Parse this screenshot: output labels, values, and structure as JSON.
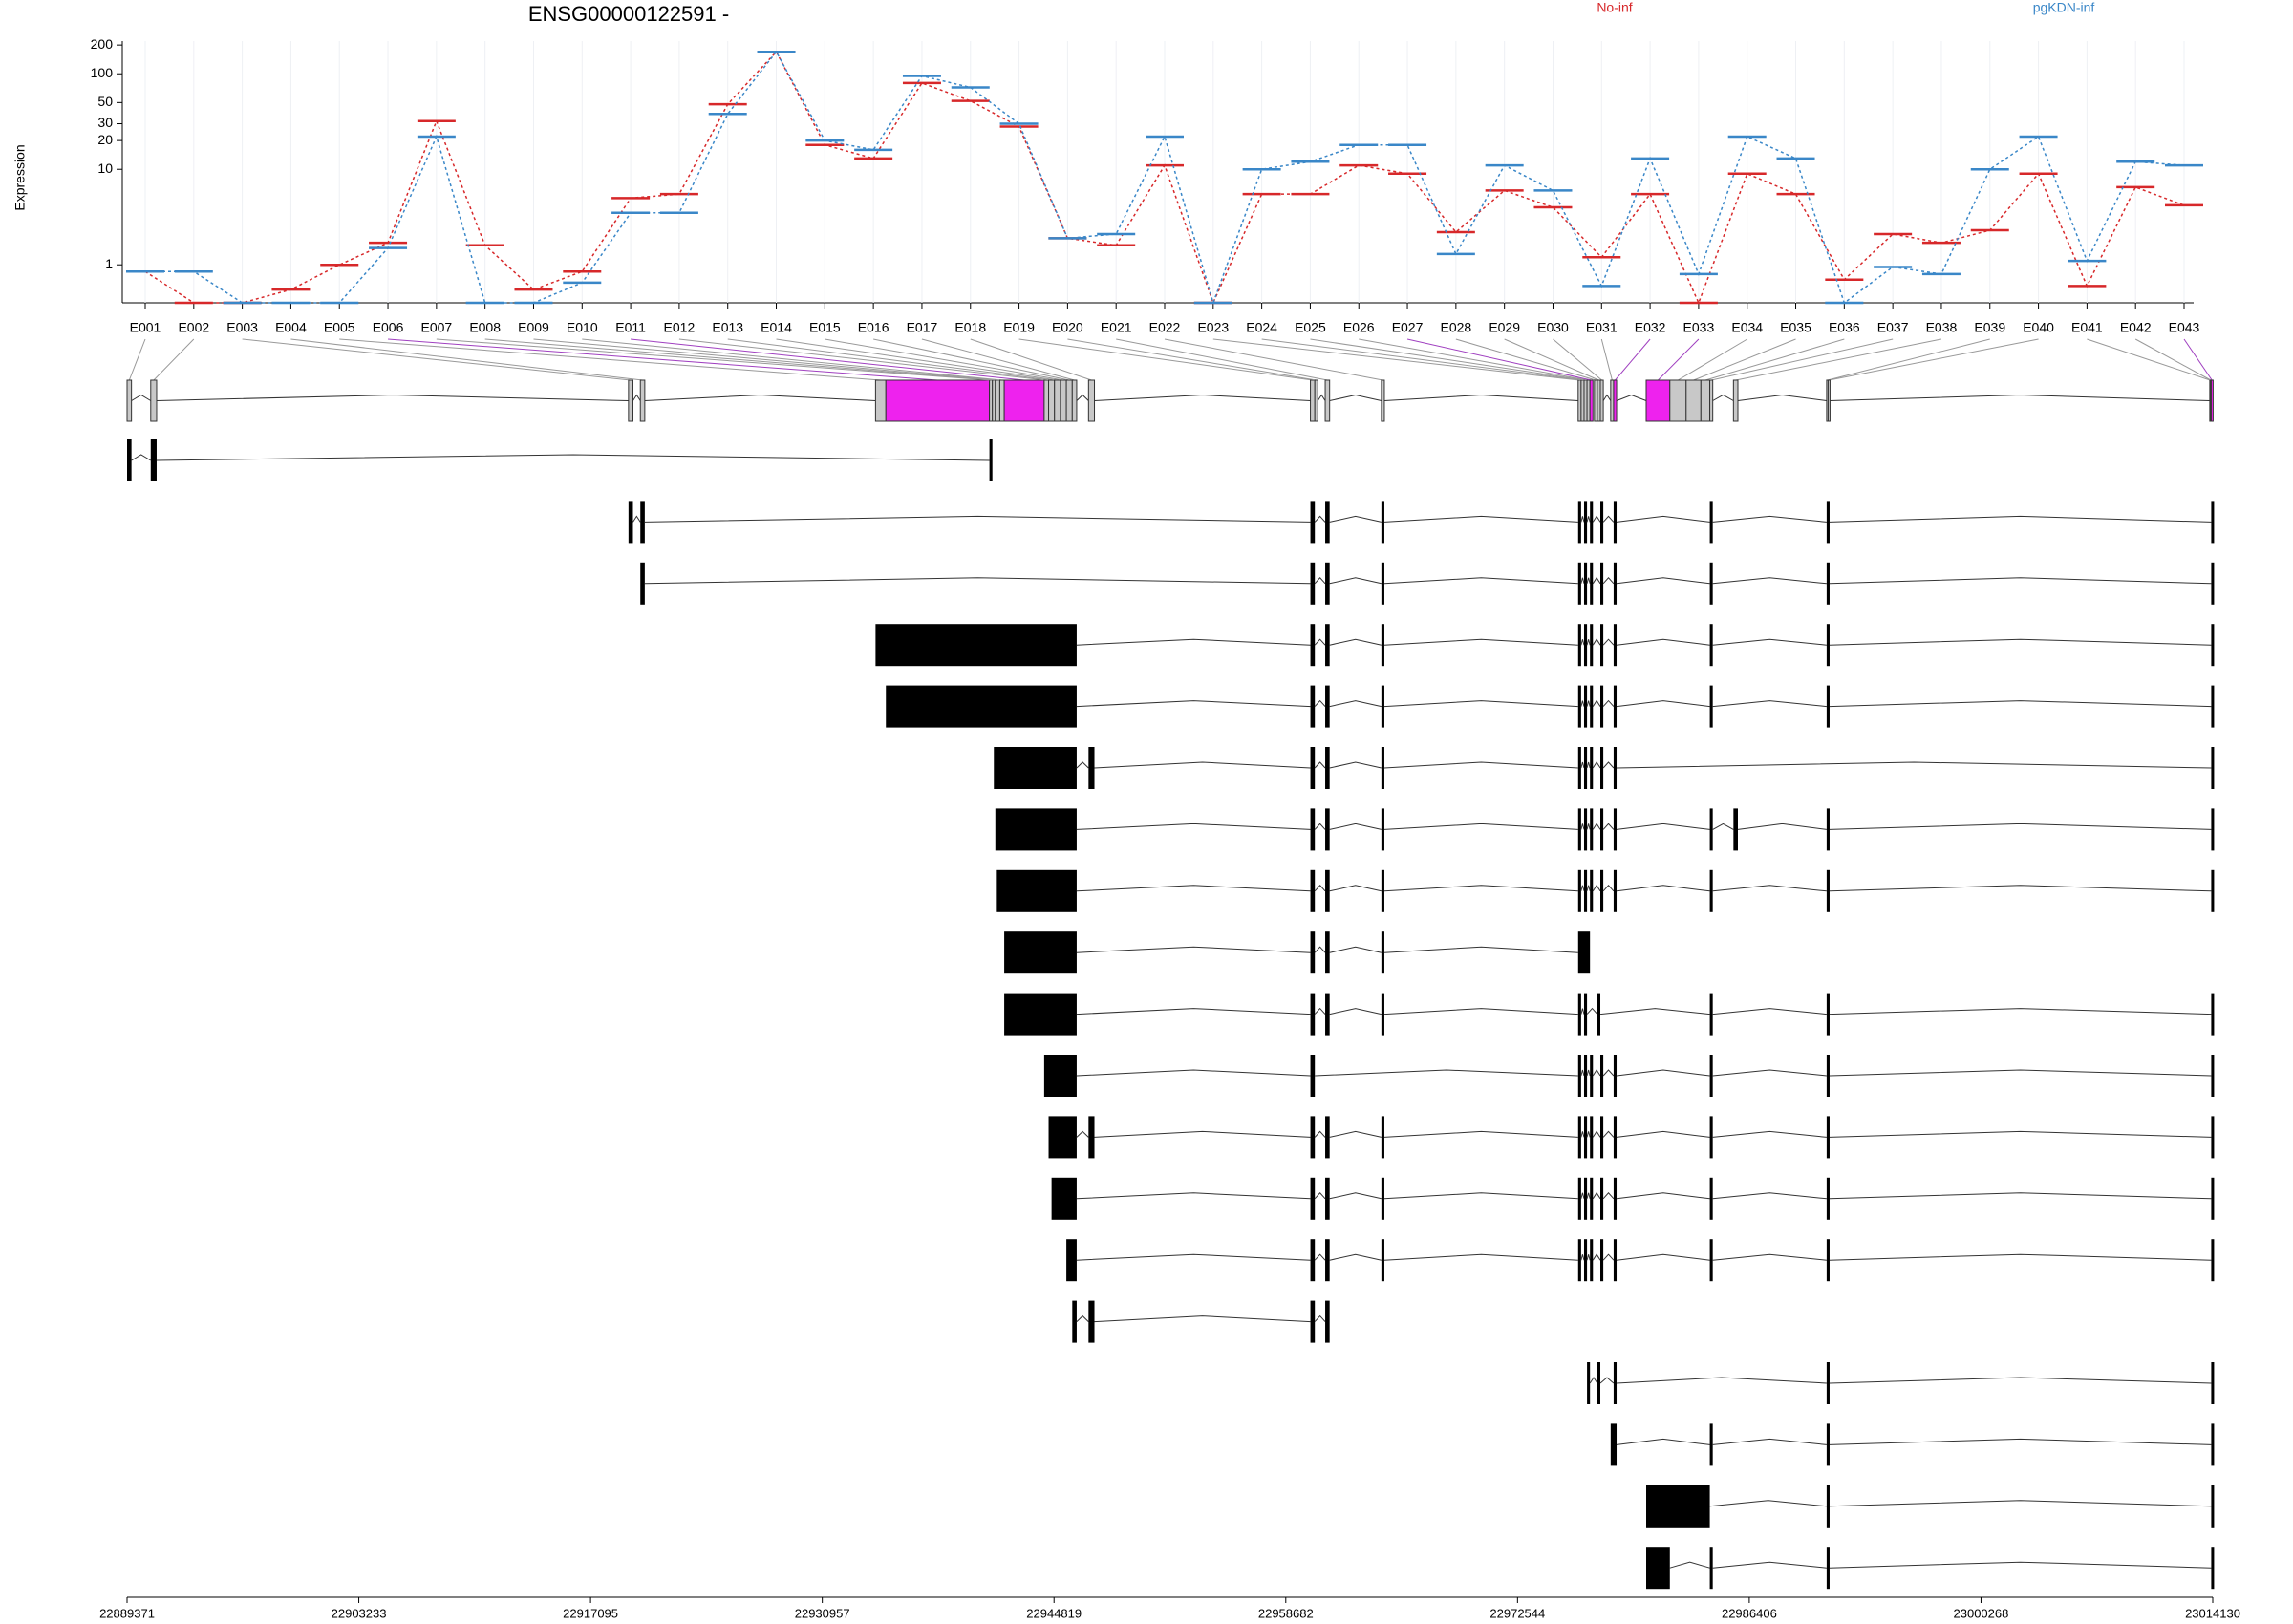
{
  "chart_data": {
    "type": "exon_usage",
    "title": "ENSG00000122591 -",
    "ylabel": "Expression",
    "log_y": true,
    "grid": true,
    "ylim": [
      0.4,
      220
    ],
    "yticks": [
      1,
      10,
      20,
      30,
      50,
      100,
      200
    ],
    "categories": [
      "E001",
      "E002",
      "E003",
      "E004",
      "E005",
      "E006",
      "E007",
      "E008",
      "E009",
      "E010",
      "E011",
      "E012",
      "E013",
      "E014",
      "E015",
      "E016",
      "E017",
      "E018",
      "E019",
      "E020",
      "E021",
      "E022",
      "E023",
      "E024",
      "E025",
      "E026",
      "E027",
      "E028",
      "E029",
      "E030",
      "E031",
      "E032",
      "E033",
      "E034",
      "E035",
      "E036",
      "E037",
      "E038",
      "E039",
      "E040",
      "E041",
      "E042",
      "E043"
    ],
    "series": [
      {
        "name": "No-inf",
        "color": "#d7282a",
        "values": [
          0.85,
          0.4,
          0.4,
          0.55,
          1.0,
          1.7,
          32,
          1.6,
          0.55,
          0.85,
          5,
          5.5,
          48,
          170,
          18,
          13,
          80,
          52,
          28,
          1.9,
          1.6,
          11,
          0.4,
          5.5,
          5.5,
          11,
          9,
          2.2,
          6,
          4,
          1.2,
          5.5,
          0.4,
          9,
          5.5,
          0.7,
          2.1,
          1.7,
          2.3,
          9,
          0.6,
          6.5,
          4.2
        ]
      },
      {
        "name": "pgKDN-inf",
        "color": "#3a87c8",
        "values": [
          0.85,
          0.85,
          0.4,
          0.4,
          0.4,
          1.5,
          22,
          0.4,
          0.4,
          0.65,
          3.5,
          3.5,
          38,
          170,
          20,
          16,
          95,
          72,
          30,
          1.9,
          2.1,
          22,
          0.4,
          10,
          12,
          18,
          18,
          1.3,
          11,
          6,
          0.6,
          13,
          0.8,
          22,
          13,
          0.4,
          0.95,
          0.8,
          10,
          22,
          1.1,
          12,
          11
        ]
      }
    ],
    "xlim": [
      22889371,
      23014130
    ],
    "xticks": [
      22889371,
      22903233,
      22917095,
      22930957,
      22944819,
      22958682,
      22972544,
      22986406,
      23000268,
      23014130
    ],
    "exon_bins": [
      [
        22889371,
        22889636
      ],
      [
        22890787,
        22891141
      ],
      [
        22919366,
        22919631
      ],
      [
        22920074,
        22920339
      ],
      [
        22934142,
        22934761
      ],
      [
        22934761,
        22940955
      ],
      [
        22940955,
        22941132
      ],
      [
        22941132,
        22941309
      ],
      [
        22941309,
        22941574
      ],
      [
        22941574,
        22941840
      ],
      [
        22941840,
        22944229
      ],
      [
        22944229,
        22944494
      ],
      [
        22944494,
        22944848
      ],
      [
        22944848,
        22945202
      ],
      [
        22945202,
        22945556
      ],
      [
        22945556,
        22945910
      ],
      [
        22945910,
        22946175
      ],
      [
        22946883,
        22947237
      ],
      [
        22960155,
        22960420
      ],
      [
        22960420,
        22960597
      ],
      [
        22961040,
        22961305
      ],
      [
        22964402,
        22964579
      ],
      [
        22976170,
        22976347
      ],
      [
        22976347,
        22976524
      ],
      [
        22976524,
        22976701
      ],
      [
        22976701,
        22976878
      ],
      [
        22976878,
        22977055
      ],
      [
        22977143,
        22977320
      ],
      [
        22977320,
        22977497
      ],
      [
        22977497,
        22977674
      ],
      [
        22978116,
        22978293
      ],
      [
        22978293,
        22978470
      ],
      [
        22980240,
        22981656
      ],
      [
        22981656,
        22982629
      ],
      [
        22982629,
        22983514
      ],
      [
        22983514,
        22984045
      ],
      [
        22984045,
        22984222
      ],
      [
        22985460,
        22985726
      ],
      [
        22991035,
        22991123
      ],
      [
        22991123,
        22991211
      ],
      [
        23013951,
        23013995
      ],
      [
        23013995,
        23014039
      ],
      [
        23014039,
        23014130
      ]
    ],
    "exon_colors": [
      "#c8c8c8",
      "#c8c8c8",
      "#c8c8c8",
      "#c8c8c8",
      "#c8c8c8",
      "#ee22ee",
      "#c8c8c8",
      "#c8c8c8",
      "#c8c8c8",
      "#c8c8c8",
      "#ee22ee",
      "#c8c8c8",
      "#c8c8c8",
      "#c8c8c8",
      "#c8c8c8",
      "#c8c8c8",
      "#c8c8c8",
      "#c8c8c8",
      "#c8c8c8",
      "#c8c8c8",
      "#c8c8c8",
      "#c8c8c8",
      "#c8c8c8",
      "#c8c8c8",
      "#c8c8c8",
      "#c8c8c8",
      "#ee22ee",
      "#c8c8c8",
      "#c8c8c8",
      "#c8c8c8",
      "#c8c8c8",
      "#ee22ee",
      "#ee22ee",
      "#c8c8c8",
      "#c8c8c8",
      "#c8c8c8",
      "#c8c8c8",
      "#c8c8c8",
      "#c8c8c8",
      "#c8c8c8",
      "#c8c8c8",
      "#c8c8c8",
      "#ee22ee"
    ],
    "transcripts": [
      [
        [
          22889371,
          22889636
        ],
        [
          22890787,
          22891141
        ],
        [
          22940955,
          22941132
        ]
      ],
      [
        [
          22919366,
          22919631
        ],
        [
          22920074,
          22920339
        ],
        [
          22960155,
          22960420
        ],
        [
          22961040,
          22961305
        ],
        [
          22964402,
          22964579
        ],
        [
          22976170,
          22976347
        ],
        [
          22976524,
          22976701
        ],
        [
          22976878,
          22977055
        ],
        [
          22977497,
          22977674
        ],
        [
          22978293,
          22978470
        ],
        [
          22984045,
          22984222
        ],
        [
          22991035,
          22991211
        ],
        [
          23014039,
          23014130
        ]
      ],
      [
        [
          22920074,
          22920339
        ],
        [
          22960155,
          22960420
        ],
        [
          22961040,
          22961305
        ],
        [
          22964402,
          22964579
        ],
        [
          22976170,
          22976347
        ],
        [
          22976524,
          22976701
        ],
        [
          22976878,
          22977055
        ],
        [
          22977497,
          22977674
        ],
        [
          22978293,
          22978470
        ],
        [
          22984045,
          22984222
        ],
        [
          22991035,
          22991211
        ],
        [
          23014039,
          23014130
        ]
      ],
      [
        [
          22934142,
          22946175
        ],
        [
          22960155,
          22960420
        ],
        [
          22961040,
          22961305
        ],
        [
          22964402,
          22964579
        ],
        [
          22976170,
          22976347
        ],
        [
          22976524,
          22976701
        ],
        [
          22976878,
          22977055
        ],
        [
          22977497,
          22977674
        ],
        [
          22978293,
          22978470
        ],
        [
          22984045,
          22984222
        ],
        [
          22991035,
          22991211
        ],
        [
          23014039,
          23014130
        ]
      ],
      [
        [
          22934761,
          22946175
        ],
        [
          22960155,
          22960420
        ],
        [
          22961040,
          22961305
        ],
        [
          22964402,
          22964579
        ],
        [
          22976170,
          22976347
        ],
        [
          22976524,
          22976701
        ],
        [
          22976878,
          22977055
        ],
        [
          22977497,
          22977674
        ],
        [
          22978293,
          22978470
        ],
        [
          22984045,
          22984222
        ],
        [
          22991035,
          22991211
        ],
        [
          23014039,
          23014130
        ]
      ],
      [
        [
          22941220,
          22946175
        ],
        [
          22946883,
          22947237
        ],
        [
          22960155,
          22960420
        ],
        [
          22961040,
          22961305
        ],
        [
          22964402,
          22964579
        ],
        [
          22976170,
          22976347
        ],
        [
          22976524,
          22976701
        ],
        [
          22976878,
          22977055
        ],
        [
          22977497,
          22977674
        ],
        [
          22978293,
          22978470
        ],
        [
          23014039,
          23014130
        ]
      ],
      [
        [
          22941309,
          22946175
        ],
        [
          22960155,
          22960420
        ],
        [
          22961040,
          22961305
        ],
        [
          22964402,
          22964579
        ],
        [
          22976170,
          22976347
        ],
        [
          22976524,
          22976701
        ],
        [
          22976878,
          22977055
        ],
        [
          22977497,
          22977674
        ],
        [
          22978293,
          22978470
        ],
        [
          22984045,
          22984222
        ],
        [
          22985460,
          22985726
        ],
        [
          22991035,
          22991211
        ],
        [
          23014039,
          23014130
        ]
      ],
      [
        [
          22941397,
          22946175
        ],
        [
          22960155,
          22960420
        ],
        [
          22961040,
          22961305
        ],
        [
          22964402,
          22964579
        ],
        [
          22976170,
          22976347
        ],
        [
          22976524,
          22976701
        ],
        [
          22976878,
          22977055
        ],
        [
          22977497,
          22977674
        ],
        [
          22978293,
          22978470
        ],
        [
          22984045,
          22984222
        ],
        [
          22991035,
          22991211
        ],
        [
          23014039,
          23014130
        ]
      ],
      [
        [
          22941840,
          22946175
        ],
        [
          22960155,
          22960420
        ],
        [
          22961040,
          22961305
        ],
        [
          22964402,
          22964579
        ],
        [
          22976170,
          22976878
        ]
      ],
      [
        [
          22941840,
          22946175
        ],
        [
          22960155,
          22960420
        ],
        [
          22961040,
          22961305
        ],
        [
          22964402,
          22964579
        ],
        [
          22976170,
          22976347
        ],
        [
          22976524,
          22976701
        ],
        [
          22977320,
          22977497
        ],
        [
          22984045,
          22984222
        ],
        [
          22991035,
          22991211
        ],
        [
          23014039,
          23014130
        ]
      ],
      [
        [
          22944229,
          22946175
        ],
        [
          22960155,
          22960420
        ],
        [
          22976170,
          22976347
        ],
        [
          22976524,
          22976701
        ],
        [
          22976878,
          22977055
        ],
        [
          22977497,
          22977674
        ],
        [
          22978293,
          22978470
        ],
        [
          22984045,
          22984222
        ],
        [
          22991035,
          22991211
        ],
        [
          23014039,
          23014130
        ]
      ],
      [
        [
          22944494,
          22946175
        ],
        [
          22946883,
          22947237
        ],
        [
          22960155,
          22960420
        ],
        [
          22961040,
          22961305
        ],
        [
          22964402,
          22964579
        ],
        [
          22976170,
          22976347
        ],
        [
          22976524,
          22976701
        ],
        [
          22976878,
          22977055
        ],
        [
          22977497,
          22977674
        ],
        [
          22978293,
          22978470
        ],
        [
          22984045,
          22984222
        ],
        [
          22991035,
          22991211
        ],
        [
          23014039,
          23014130
        ]
      ],
      [
        [
          22944671,
          22946175
        ],
        [
          22960155,
          22960420
        ],
        [
          22961040,
          22961305
        ],
        [
          22964402,
          22964579
        ],
        [
          22976170,
          22976347
        ],
        [
          22976524,
          22976701
        ],
        [
          22976878,
          22977055
        ],
        [
          22977497,
          22977674
        ],
        [
          22978293,
          22978470
        ],
        [
          22984045,
          22984222
        ],
        [
          22991035,
          22991211
        ],
        [
          23014039,
          23014130
        ]
      ],
      [
        [
          22945556,
          22946175
        ],
        [
          22960155,
          22960420
        ],
        [
          22961040,
          22961305
        ],
        [
          22964402,
          22964579
        ],
        [
          22976170,
          22976347
        ],
        [
          22976524,
          22976701
        ],
        [
          22976878,
          22977055
        ],
        [
          22977497,
          22977674
        ],
        [
          22978293,
          22978470
        ],
        [
          22984045,
          22984222
        ],
        [
          22991035,
          22991211
        ],
        [
          23014039,
          23014130
        ]
      ],
      [
        [
          22945910,
          22946175
        ],
        [
          22946883,
          22947237
        ],
        [
          22960155,
          22960420
        ],
        [
          22961040,
          22961305
        ]
      ],
      [
        [
          22976701,
          22976878
        ],
        [
          22977320,
          22977497
        ],
        [
          22978293,
          22978470
        ],
        [
          22991035,
          22991211
        ],
        [
          23014039,
          23014130
        ]
      ],
      [
        [
          22978116,
          22978470
        ],
        [
          22984045,
          22984222
        ],
        [
          22991035,
          22991211
        ],
        [
          23014039,
          23014130
        ]
      ],
      [
        [
          22980240,
          22984045
        ],
        [
          22991035,
          22991211
        ],
        [
          23014039,
          23014130
        ]
      ],
      [
        [
          22980240,
          22981656
        ],
        [
          22984045,
          22984222
        ],
        [
          22991035,
          22991211
        ],
        [
          23014039,
          23014130
        ]
      ]
    ]
  }
}
